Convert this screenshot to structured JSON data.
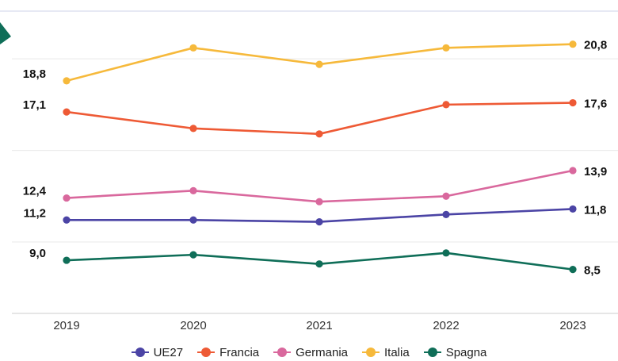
{
  "chart_data": {
    "type": "line",
    "categories": [
      "2019",
      "2020",
      "2021",
      "2022",
      "2023"
    ],
    "series": [
      {
        "name": "UE27",
        "color": "#4b44a5",
        "values": [
          11.2,
          11.2,
          11.1,
          11.5,
          11.8
        ],
        "labels": [
          "11,2",
          null,
          null,
          null,
          "11,8"
        ]
      },
      {
        "name": "Francia",
        "color": "#ee5a35",
        "values": [
          17.1,
          16.2,
          15.9,
          17.5,
          17.6
        ],
        "labels": [
          "17,1",
          null,
          null,
          null,
          "17,6"
        ]
      },
      {
        "name": "Germania",
        "color": "#d9689d",
        "values": [
          12.4,
          12.8,
          12.2,
          12.5,
          13.9
        ],
        "labels": [
          "12,4",
          null,
          null,
          null,
          "13,9"
        ]
      },
      {
        "name": "Italia",
        "color": "#f6b93b",
        "values": [
          18.8,
          20.6,
          19.7,
          20.6,
          20.8
        ],
        "labels": [
          "18,8",
          null,
          null,
          null,
          "20,8"
        ]
      },
      {
        "name": "Spagna",
        "color": "#0f6e58",
        "values": [
          9.0,
          9.3,
          8.8,
          9.4,
          8.5
        ],
        "labels": [
          "9,0",
          null,
          null,
          null,
          "8,5"
        ]
      }
    ],
    "ylim": [
      6.1,
      22.0
    ],
    "grid": true,
    "legend_position": "bottom"
  }
}
